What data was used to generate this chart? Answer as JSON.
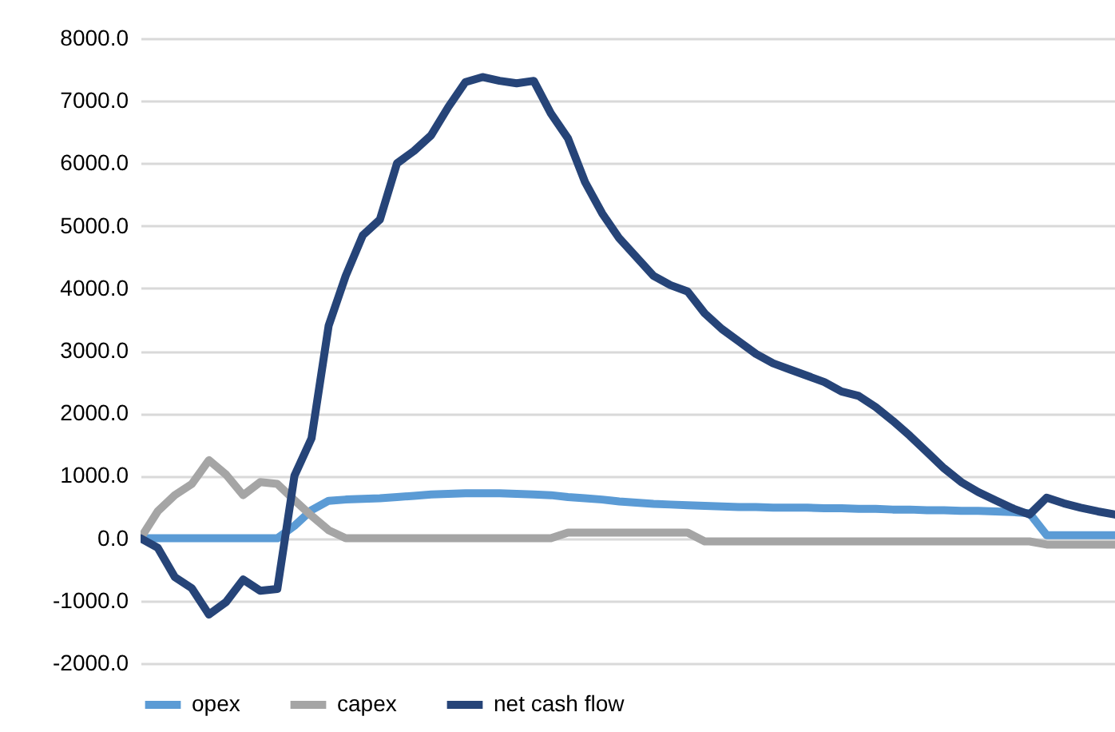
{
  "chart_data": {
    "type": "line",
    "categories": [
      null,
      null,
      null,
      null,
      null,
      null,
      null,
      null,
      null,
      null,
      null,
      null,
      null,
      null,
      null,
      null,
      null,
      null,
      null,
      null,
      null,
      null,
      null,
      null,
      null,
      null,
      null,
      null,
      null,
      null,
      null,
      null,
      null,
      null,
      null,
      null,
      null,
      null,
      null,
      null,
      null,
      null,
      null,
      null,
      null,
      null,
      null,
      null,
      null,
      null,
      null,
      null,
      null,
      null,
      null,
      null,
      null,
      null
    ],
    "series": [
      {
        "name": "opex",
        "color": "#5b9bd5",
        "values": [
          0,
          0,
          0,
          0,
          0,
          0,
          0,
          0,
          0,
          200,
          450,
          600,
          620,
          630,
          640,
          660,
          680,
          700,
          710,
          720,
          720,
          720,
          710,
          700,
          690,
          660,
          640,
          620,
          590,
          570,
          550,
          540,
          530,
          520,
          510,
          500,
          500,
          490,
          490,
          490,
          480,
          480,
          470,
          470,
          460,
          460,
          450,
          450,
          440,
          440,
          430,
          420,
          400,
          50,
          50,
          50,
          50,
          50
        ]
      },
      {
        "name": "capex",
        "color": "#a5a5a5",
        "values": [
          0,
          430,
          690,
          870,
          1250,
          1020,
          690,
          900,
          870,
          610,
          360,
          130,
          0,
          0,
          0,
          0,
          0,
          0,
          0,
          0,
          0,
          0,
          0,
          0,
          0,
          90,
          90,
          90,
          90,
          90,
          90,
          90,
          90,
          -50,
          -50,
          -50,
          -50,
          -50,
          -50,
          -50,
          -50,
          -50,
          -50,
          -50,
          -50,
          -50,
          -50,
          -50,
          -50,
          -50,
          -50,
          -50,
          -50,
          -100,
          -100,
          -100,
          -100,
          -100
        ]
      },
      {
        "name": "net cash flow",
        "color": "#264478",
        "values": [
          0,
          -150,
          -620,
          -800,
          -1220,
          -1020,
          -660,
          -840,
          -810,
          1000,
          1600,
          3400,
          4200,
          4850,
          5100,
          6000,
          6200,
          6450,
          6900,
          7300,
          7380,
          7320,
          7280,
          7320,
          6800,
          6400,
          5700,
          5200,
          4800,
          4500,
          4200,
          4050,
          3950,
          3600,
          3350,
          3150,
          2950,
          2800,
          2700,
          2600,
          2500,
          2350,
          2280,
          2100,
          1880,
          1640,
          1380,
          1120,
          900,
          740,
          610,
          480,
          380,
          650,
          560,
          490,
          430,
          380
        ]
      }
    ],
    "ylim": [
      -2000,
      8000
    ],
    "yticks": [
      {
        "value": -2000,
        "label": "-2000.0"
      },
      {
        "value": -1000,
        "label": "-1000.0"
      },
      {
        "value": 0,
        "label": "0.0"
      },
      {
        "value": 1000,
        "label": "1000.0"
      },
      {
        "value": 2000,
        "label": "2000.0"
      },
      {
        "value": 3000,
        "label": "3000.0"
      },
      {
        "value": 4000,
        "label": "4000.0"
      },
      {
        "value": 5000,
        "label": "5000.0"
      },
      {
        "value": 6000,
        "label": "6000.0"
      },
      {
        "value": 7000,
        "label": "7000.0"
      },
      {
        "value": 8000,
        "label": "8000.0"
      }
    ],
    "grid": "y",
    "legend": "bottom",
    "tick_labels": "y",
    "line_style": "solid"
  }
}
